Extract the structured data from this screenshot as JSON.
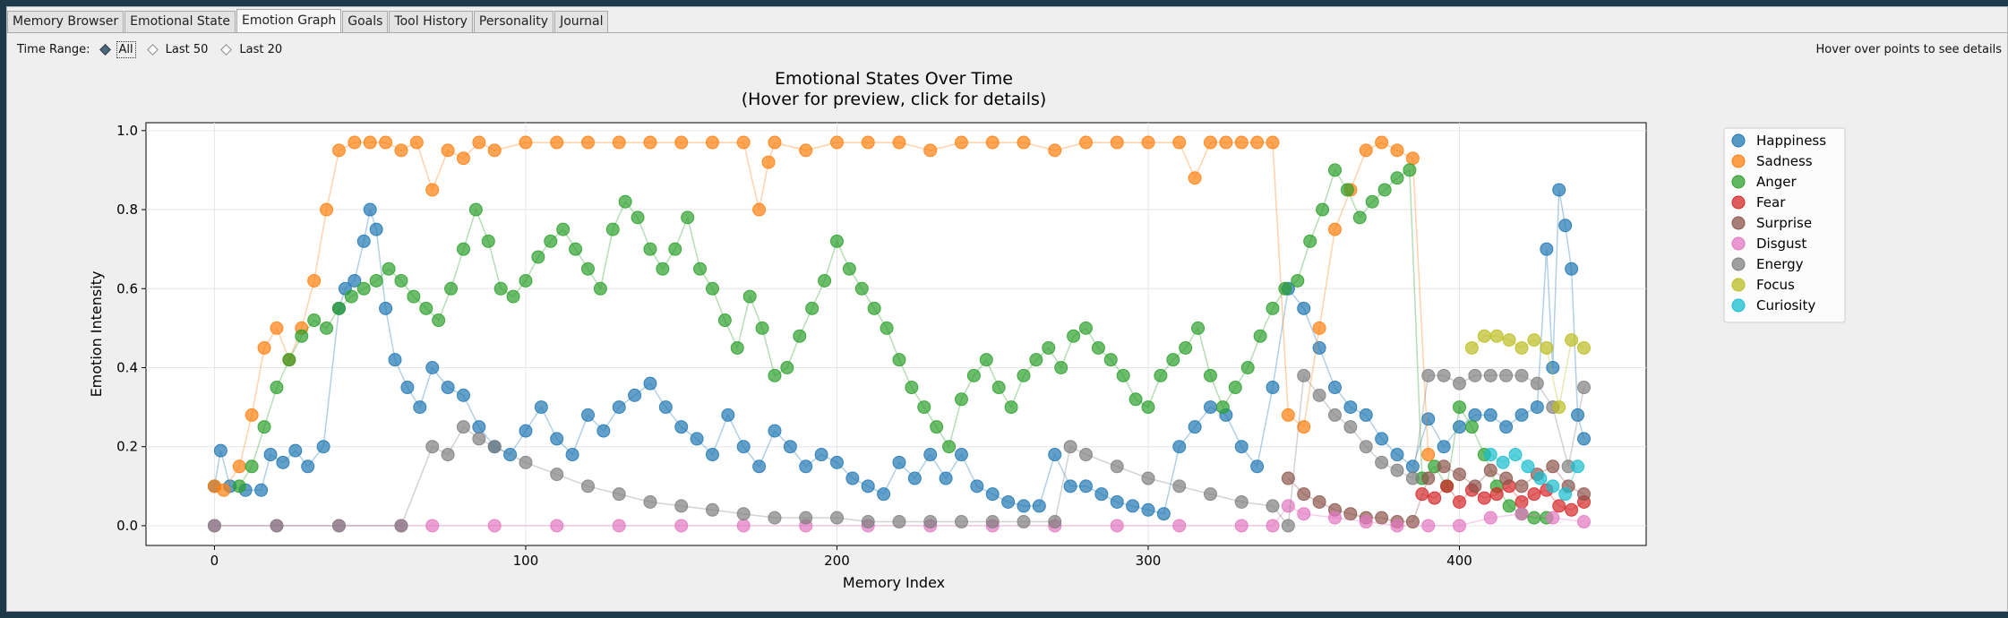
{
  "tabs": [
    {
      "label": "Memory Browser",
      "active": false
    },
    {
      "label": "Emotional State",
      "active": false
    },
    {
      "label": "Emotion Graph",
      "active": true
    },
    {
      "label": "Goals",
      "active": false
    },
    {
      "label": "Tool History",
      "active": false
    },
    {
      "label": "Personality",
      "active": false
    },
    {
      "label": "Journal",
      "active": false
    }
  ],
  "toolbar": {
    "time_range_label": "Time Range:",
    "options": [
      "All",
      "Last 50",
      "Last 20"
    ],
    "selected": "All",
    "hint": "Hover over points to see details"
  },
  "chart_data": {
    "type": "scatter",
    "title": "Emotional States Over Time",
    "subtitle": "(Hover for preview, click for details)",
    "xlabel": "Memory Index",
    "ylabel": "Emotion Intensity",
    "xlim": [
      -22,
      460
    ],
    "ylim": [
      -0.05,
      1.02
    ],
    "xticks": [
      0,
      100,
      200,
      300,
      400
    ],
    "yticks": [
      0.0,
      0.2,
      0.4,
      0.6,
      0.8,
      1.0
    ],
    "xtick_labels": [
      "0",
      "100",
      "200",
      "300",
      "400"
    ],
    "ytick_labels": [
      "0.0",
      "0.2",
      "0.4",
      "0.6",
      "0.8",
      "1.0"
    ],
    "grid": true,
    "legend_position": "right",
    "series": [
      {
        "name": "Happiness",
        "color": "#1f77b4",
        "x": [
          0,
          2,
          5,
          10,
          15,
          18,
          22,
          26,
          30,
          35,
          40,
          42,
          45,
          48,
          50,
          52,
          55,
          58,
          62,
          66,
          70,
          75,
          80,
          85,
          90,
          95,
          100,
          105,
          110,
          115,
          120,
          125,
          130,
          135,
          140,
          145,
          150,
          155,
          160,
          165,
          170,
          175,
          180,
          185,
          190,
          195,
          200,
          205,
          210,
          215,
          220,
          225,
          230,
          235,
          240,
          245,
          250,
          255,
          260,
          265,
          270,
          275,
          280,
          285,
          290,
          295,
          300,
          305,
          310,
          315,
          320,
          325,
          330,
          335,
          340,
          345,
          350,
          355,
          360,
          365,
          370,
          375,
          380,
          385,
          390,
          395,
          400,
          405,
          410,
          415,
          420,
          425,
          428,
          430,
          432,
          434,
          436,
          438,
          440
        ],
        "y": [
          0.1,
          0.19,
          0.1,
          0.09,
          0.09,
          0.18,
          0.16,
          0.19,
          0.15,
          0.2,
          0.55,
          0.6,
          0.62,
          0.72,
          0.8,
          0.75,
          0.55,
          0.42,
          0.35,
          0.3,
          0.4,
          0.35,
          0.33,
          0.25,
          0.2,
          0.18,
          0.24,
          0.3,
          0.22,
          0.18,
          0.28,
          0.24,
          0.3,
          0.33,
          0.36,
          0.3,
          0.25,
          0.22,
          0.18,
          0.28,
          0.2,
          0.15,
          0.24,
          0.2,
          0.15,
          0.18,
          0.16,
          0.12,
          0.1,
          0.08,
          0.16,
          0.12,
          0.18,
          0.12,
          0.18,
          0.1,
          0.08,
          0.06,
          0.05,
          0.05,
          0.18,
          0.1,
          0.1,
          0.08,
          0.06,
          0.05,
          0.04,
          0.03,
          0.2,
          0.25,
          0.3,
          0.28,
          0.2,
          0.15,
          0.35,
          0.6,
          0.55,
          0.45,
          0.35,
          0.3,
          0.28,
          0.22,
          0.18,
          0.15,
          0.27,
          0.2,
          0.25,
          0.28,
          0.28,
          0.25,
          0.28,
          0.3,
          0.7,
          0.4,
          0.85,
          0.76,
          0.65,
          0.28,
          0.22
        ]
      },
      {
        "name": "Sadness",
        "color": "#ff7f0e",
        "x": [
          0,
          3,
          8,
          12,
          16,
          20,
          24,
          28,
          32,
          36,
          40,
          45,
          50,
          55,
          60,
          65,
          70,
          75,
          80,
          85,
          90,
          100,
          110,
          120,
          130,
          140,
          150,
          160,
          170,
          175,
          178,
          180,
          190,
          200,
          210,
          220,
          230,
          240,
          250,
          260,
          270,
          280,
          290,
          300,
          310,
          315,
          320,
          325,
          330,
          335,
          340,
          345,
          350,
          355,
          360,
          365,
          370,
          375,
          380,
          385,
          390
        ],
        "y": [
          0.1,
          0.09,
          0.15,
          0.28,
          0.45,
          0.5,
          0.42,
          0.5,
          0.62,
          0.8,
          0.95,
          0.97,
          0.97,
          0.97,
          0.95,
          0.97,
          0.85,
          0.95,
          0.93,
          0.97,
          0.95,
          0.97,
          0.97,
          0.97,
          0.97,
          0.97,
          0.97,
          0.97,
          0.97,
          0.8,
          0.92,
          0.97,
          0.95,
          0.97,
          0.97,
          0.97,
          0.95,
          0.97,
          0.97,
          0.97,
          0.95,
          0.97,
          0.97,
          0.97,
          0.97,
          0.88,
          0.97,
          0.97,
          0.97,
          0.97,
          0.97,
          0.28,
          0.25,
          0.5,
          0.75,
          0.85,
          0.95,
          0.97,
          0.95,
          0.93,
          0.18
        ]
      },
      {
        "name": "Anger",
        "color": "#2ca02c",
        "x": [
          8,
          12,
          16,
          20,
          24,
          28,
          32,
          36,
          40,
          44,
          48,
          52,
          56,
          60,
          64,
          68,
          72,
          76,
          80,
          84,
          88,
          92,
          96,
          100,
          104,
          108,
          112,
          116,
          120,
          124,
          128,
          132,
          136,
          140,
          144,
          148,
          152,
          156,
          160,
          164,
          168,
          172,
          176,
          180,
          184,
          188,
          192,
          196,
          200,
          204,
          208,
          212,
          216,
          220,
          224,
          228,
          232,
          236,
          240,
          244,
          248,
          252,
          256,
          260,
          264,
          268,
          272,
          276,
          280,
          284,
          288,
          292,
          296,
          300,
          304,
          308,
          312,
          316,
          320,
          324,
          328,
          332,
          336,
          340,
          344,
          348,
          352,
          356,
          360,
          364,
          368,
          372,
          376,
          380,
          384,
          388,
          392,
          396,
          400,
          404,
          408,
          412,
          416,
          420,
          424,
          428
        ],
        "y": [
          0.1,
          0.15,
          0.25,
          0.35,
          0.42,
          0.48,
          0.52,
          0.5,
          0.55,
          0.58,
          0.6,
          0.62,
          0.65,
          0.62,
          0.58,
          0.55,
          0.52,
          0.6,
          0.7,
          0.8,
          0.72,
          0.6,
          0.58,
          0.62,
          0.68,
          0.72,
          0.75,
          0.7,
          0.65,
          0.6,
          0.75,
          0.82,
          0.78,
          0.7,
          0.65,
          0.7,
          0.78,
          0.65,
          0.6,
          0.52,
          0.45,
          0.58,
          0.5,
          0.38,
          0.4,
          0.48,
          0.55,
          0.62,
          0.72,
          0.65,
          0.6,
          0.55,
          0.5,
          0.42,
          0.35,
          0.3,
          0.25,
          0.2,
          0.32,
          0.38,
          0.42,
          0.35,
          0.3,
          0.38,
          0.42,
          0.45,
          0.4,
          0.48,
          0.5,
          0.45,
          0.42,
          0.38,
          0.32,
          0.3,
          0.38,
          0.42,
          0.45,
          0.5,
          0.38,
          0.3,
          0.35,
          0.4,
          0.48,
          0.55,
          0.6,
          0.62,
          0.72,
          0.8,
          0.9,
          0.85,
          0.78,
          0.82,
          0.85,
          0.88,
          0.9,
          0.12,
          0.15,
          0.1,
          0.3,
          0.25,
          0.18,
          0.1,
          0.05,
          0.03,
          0.02,
          0.02
        ]
      },
      {
        "name": "Fear",
        "color": "#d62728",
        "x": [
          388,
          392,
          396,
          400,
          404,
          408,
          412,
          416,
          420,
          424,
          428,
          432,
          436,
          440
        ],
        "y": [
          0.08,
          0.07,
          0.1,
          0.06,
          0.09,
          0.07,
          0.08,
          0.1,
          0.06,
          0.08,
          0.09,
          0.05,
          0.04,
          0.06
        ]
      },
      {
        "name": "Surprise",
        "color": "#8c564b",
        "x": [
          345,
          350,
          355,
          360,
          365,
          370,
          375,
          380,
          385,
          390,
          395,
          400,
          405,
          410,
          415,
          420,
          425,
          430,
          435,
          440
        ],
        "y": [
          0.12,
          0.08,
          0.06,
          0.04,
          0.03,
          0.02,
          0.02,
          0.01,
          0.01,
          0.12,
          0.15,
          0.13,
          0.1,
          0.14,
          0.12,
          0.1,
          0.13,
          0.15,
          0.1,
          0.08
        ]
      },
      {
        "name": "Disgust",
        "color": "#e377c2",
        "x": [
          0,
          20,
          40,
          60,
          70,
          90,
          110,
          130,
          150,
          170,
          190,
          210,
          230,
          250,
          270,
          290,
          310,
          330,
          340,
          345,
          350,
          360,
          370,
          380,
          390,
          400,
          410,
          420,
          430,
          440
        ],
        "y": [
          0.0,
          0.0,
          0.0,
          0.0,
          0.0,
          0.0,
          0.0,
          0.0,
          0.0,
          0.0,
          0.0,
          0.0,
          0.0,
          0.0,
          0.0,
          0.0,
          0.0,
          0.0,
          0.0,
          0.05,
          0.03,
          0.02,
          0.01,
          0.0,
          0.0,
          0.0,
          0.02,
          0.03,
          0.02,
          0.01
        ]
      },
      {
        "name": "Energy",
        "color": "#7f7f7f",
        "x": [
          0,
          20,
          40,
          60,
          70,
          75,
          80,
          85,
          90,
          100,
          110,
          120,
          130,
          140,
          150,
          160,
          170,
          180,
          190,
          200,
          210,
          220,
          230,
          240,
          250,
          260,
          270,
          275,
          280,
          290,
          300,
          310,
          320,
          330,
          340,
          345,
          350,
          355,
          360,
          365,
          370,
          375,
          380,
          385,
          390,
          395,
          400,
          405,
          410,
          415,
          420,
          425,
          430,
          435,
          440
        ],
        "y": [
          0.0,
          0.0,
          0.0,
          0.0,
          0.2,
          0.18,
          0.25,
          0.22,
          0.2,
          0.16,
          0.13,
          0.1,
          0.08,
          0.06,
          0.05,
          0.04,
          0.03,
          0.02,
          0.02,
          0.02,
          0.01,
          0.01,
          0.01,
          0.01,
          0.01,
          0.01,
          0.01,
          0.2,
          0.18,
          0.15,
          0.12,
          0.1,
          0.08,
          0.06,
          0.05,
          0.0,
          0.38,
          0.33,
          0.28,
          0.25,
          0.2,
          0.16,
          0.14,
          0.12,
          0.38,
          0.38,
          0.36,
          0.38,
          0.38,
          0.38,
          0.38,
          0.36,
          0.3,
          0.15,
          0.35
        ]
      },
      {
        "name": "Focus",
        "color": "#bcbd22",
        "x": [
          404,
          408,
          412,
          416,
          420,
          424,
          428,
          432,
          436,
          440
        ],
        "y": [
          0.45,
          0.48,
          0.48,
          0.47,
          0.45,
          0.47,
          0.45,
          0.3,
          0.47,
          0.45
        ]
      },
      {
        "name": "Curiosity",
        "color": "#17becf",
        "x": [
          410,
          414,
          418,
          422,
          426,
          430,
          434,
          438
        ],
        "y": [
          0.18,
          0.16,
          0.18,
          0.15,
          0.12,
          0.1,
          0.08,
          0.15
        ]
      }
    ]
  }
}
